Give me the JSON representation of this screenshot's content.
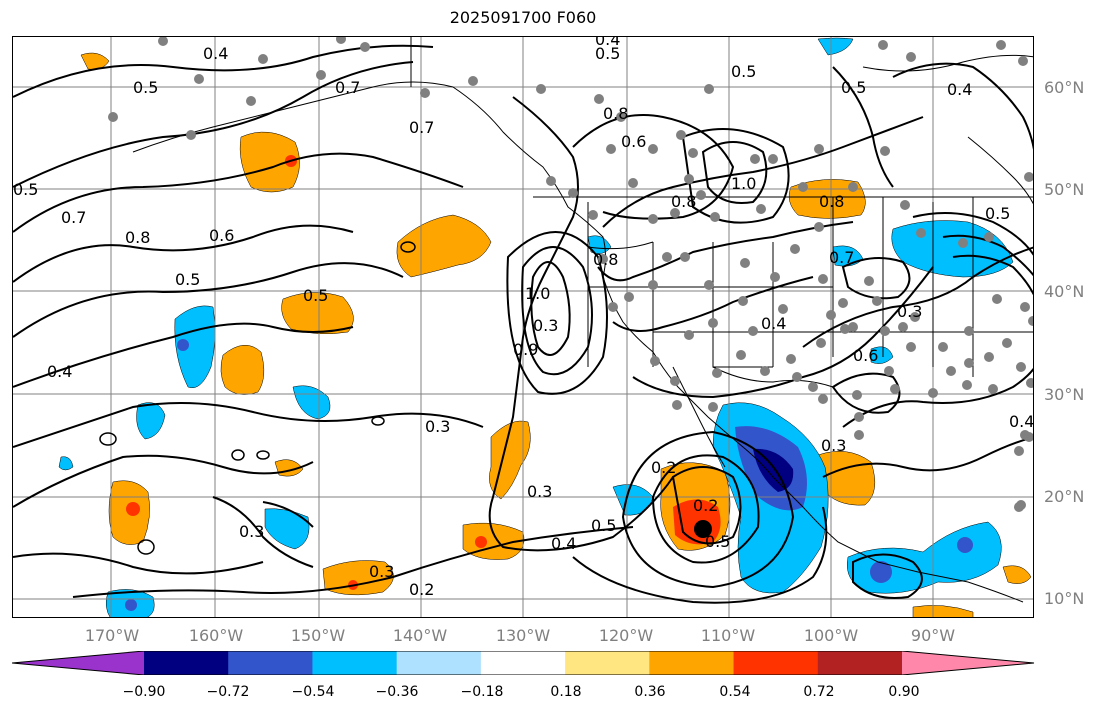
{
  "title": "2025091700 F060",
  "lat_labels": [
    "60°N",
    "50°N",
    "40°N",
    "30°N",
    "20°N",
    "10°N"
  ],
  "lon_labels": [
    "170°W",
    "160°W",
    "150°W",
    "140°W",
    "130°W",
    "120°W",
    "110°W",
    "100°W",
    "90°W"
  ],
  "colorbar": {
    "tick_labels": [
      "−0.90",
      "−0.72",
      "−0.54",
      "−0.36",
      "−0.18",
      "0.18",
      "0.36",
      "0.54",
      "0.72",
      "0.90"
    ],
    "colors": [
      "#9933cc",
      "#000080",
      "#3355cc",
      "#00bfff",
      "#aee0ff",
      "#ffffff",
      "#ffe680",
      "#ffa500",
      "#ff3300",
      "#b22222",
      "#ff88aa"
    ]
  },
  "contour_labels": [
    "0.4",
    "0.5",
    "0.5",
    "0.7",
    "0.5",
    "0.7",
    "0.8",
    "0.6",
    "0.5",
    "0.5",
    "0.4",
    "0.3",
    "0.3",
    "0.3",
    "0.2",
    "0.3",
    "0.2",
    "0.4",
    "0.5",
    "0.5",
    "0.7",
    "0.8",
    "0.6",
    "0.8",
    "1.0",
    "1.0",
    "0.9",
    "0.8",
    "0.3",
    "0.7",
    "0.4",
    "0.6",
    "0.5",
    "0.4",
    "0.3",
    "0.8",
    "0.4",
    "0.3",
    "0.5",
    "0.4",
    "0.5",
    "0.2"
  ],
  "colors": {
    "contour": "#000000",
    "grid": "#808080",
    "station_marker": "#808080",
    "center_marker": "#000000"
  }
}
